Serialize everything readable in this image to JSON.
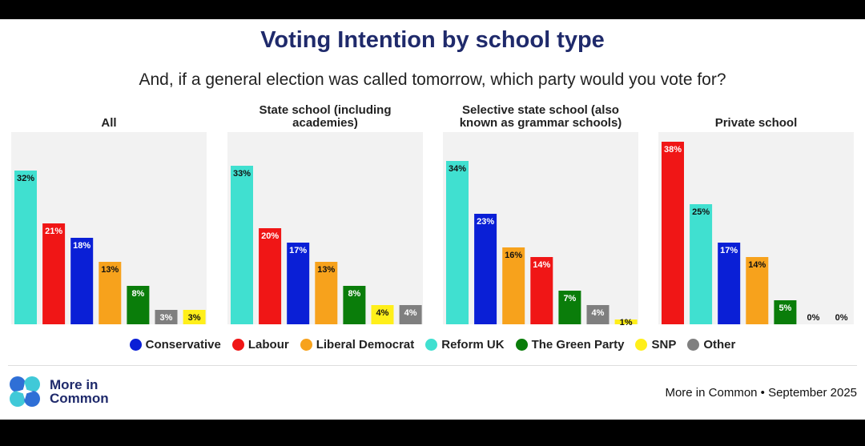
{
  "title": "Voting Intention by school type",
  "subtitle": "And, if a general election was called tomorrow, which party would you vote for?",
  "source": "More in Common • September 2025",
  "logo": {
    "line1": "More in",
    "line2": "Common"
  },
  "legend": [
    {
      "name": "Conservative",
      "color": "#0a1fd6"
    },
    {
      "name": "Labour",
      "color": "#f01616"
    },
    {
      "name": "Liberal Democrat",
      "color": "#f7a21c"
    },
    {
      "name": "Reform UK",
      "color": "#40e0d0"
    },
    {
      "name": "The Green Party",
      "color": "#0a7d0a"
    },
    {
      "name": "SNP",
      "color": "#ffef1a"
    },
    {
      "name": "Other",
      "color": "#7f7f7f"
    }
  ],
  "chart_data": [
    {
      "type": "bar",
      "title": "All",
      "ylim": [
        0,
        40
      ],
      "bars": [
        {
          "party": "Reform UK",
          "value": 32,
          "label": "32%"
        },
        {
          "party": "Labour",
          "value": 21,
          "label": "21%"
        },
        {
          "party": "Conservative",
          "value": 18,
          "label": "18%"
        },
        {
          "party": "Liberal Democrat",
          "value": 13,
          "label": "13%"
        },
        {
          "party": "The Green Party",
          "value": 8,
          "label": "8%"
        },
        {
          "party": "Other",
          "value": 3,
          "label": "3%"
        },
        {
          "party": "SNP",
          "value": 3,
          "label": "3%"
        }
      ]
    },
    {
      "type": "bar",
      "title": "State school (including academies)",
      "ylim": [
        0,
        40
      ],
      "bars": [
        {
          "party": "Reform UK",
          "value": 33,
          "label": "33%"
        },
        {
          "party": "Labour",
          "value": 20,
          "label": "20%"
        },
        {
          "party": "Conservative",
          "value": 17,
          "label": "17%"
        },
        {
          "party": "Liberal Democrat",
          "value": 13,
          "label": "13%"
        },
        {
          "party": "The Green Party",
          "value": 8,
          "label": "8%"
        },
        {
          "party": "SNP",
          "value": 4,
          "label": "4%"
        },
        {
          "party": "Other",
          "value": 4,
          "label": "4%"
        }
      ]
    },
    {
      "type": "bar",
      "title": "Selective state school (also known as grammar schools)",
      "ylim": [
        0,
        40
      ],
      "bars": [
        {
          "party": "Reform UK",
          "value": 34,
          "label": "34%"
        },
        {
          "party": "Conservative",
          "value": 23,
          "label": "23%"
        },
        {
          "party": "Liberal Democrat",
          "value": 16,
          "label": "16%"
        },
        {
          "party": "Labour",
          "value": 14,
          "label": "14%"
        },
        {
          "party": "The Green Party",
          "value": 7,
          "label": "7%"
        },
        {
          "party": "Other",
          "value": 4,
          "label": "4%"
        },
        {
          "party": "SNP",
          "value": 1,
          "label": "1%"
        }
      ]
    },
    {
      "type": "bar",
      "title": "Private school",
      "ylim": [
        0,
        40
      ],
      "bars": [
        {
          "party": "Labour",
          "value": 38,
          "label": "38%"
        },
        {
          "party": "Reform UK",
          "value": 25,
          "label": "25%"
        },
        {
          "party": "Conservative",
          "value": 17,
          "label": "17%"
        },
        {
          "party": "Liberal Democrat",
          "value": 14,
          "label": "14%"
        },
        {
          "party": "The Green Party",
          "value": 5,
          "label": "5%"
        },
        {
          "party": "SNP",
          "value": 0,
          "label": "0%"
        },
        {
          "party": "Other",
          "value": 0,
          "label": "0%"
        }
      ]
    }
  ]
}
